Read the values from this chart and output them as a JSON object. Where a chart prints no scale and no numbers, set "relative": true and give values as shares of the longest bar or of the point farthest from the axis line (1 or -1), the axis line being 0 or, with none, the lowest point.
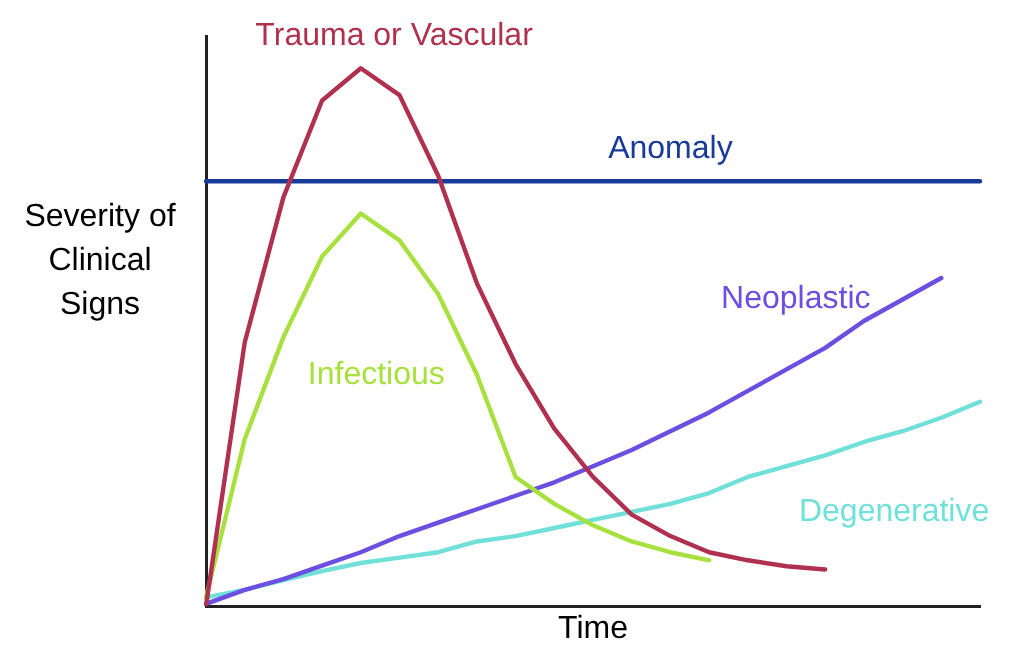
{
  "chart_data": {
    "type": "line",
    "relative": true,
    "xlabel": "Time",
    "ylabel": "Severity of Clinical Signs",
    "grid": false,
    "legend": false,
    "marker": "none",
    "line_style": "solid",
    "categories": [
      null,
      null,
      null,
      null,
      null,
      null,
      null,
      null,
      null,
      null,
      null,
      null,
      null,
      null,
      null,
      null,
      null,
      null,
      null,
      null,
      null
    ],
    "series": [
      {
        "name": "Trauma or Vascular",
        "color": "#b0304f",
        "values": [
          0,
          0.49,
          0.76,
          0.94,
          1,
          0.95,
          0.8,
          0.6,
          0.45,
          0.33,
          0.24,
          0.17,
          0.13,
          0.1,
          0.085,
          0.074,
          0.068,
          null,
          null,
          null,
          null
        ]
      },
      {
        "name": "Anomaly",
        "color": "#1a3a9a",
        "values": [
          0.79,
          0.79,
          0.79,
          0.79,
          0.79,
          0.79,
          0.79,
          0.79,
          0.79,
          0.79,
          0.79,
          0.79,
          0.79,
          0.79,
          0.79,
          0.79,
          0.79,
          0.79,
          0.79,
          0.79,
          0.79
        ]
      },
      {
        "name": "Infectious",
        "color": "#a8e040",
        "values": [
          0.016,
          0.31,
          0.5,
          0.65,
          0.73,
          0.68,
          0.58,
          0.43,
          0.24,
          0.19,
          0.15,
          0.12,
          0.1,
          0.085,
          null,
          null,
          null,
          null,
          null,
          null,
          null
        ]
      },
      {
        "name": "Neoplastic",
        "color": "#6a4fe0",
        "values": [
          0.004,
          0.03,
          0.05,
          0.075,
          0.1,
          0.13,
          0.155,
          0.18,
          0.205,
          0.23,
          0.26,
          0.29,
          0.325,
          0.36,
          0.4,
          0.44,
          0.48,
          0.53,
          0.57,
          0.61,
          null
        ]
      },
      {
        "name": "Degenerative",
        "color": "#70e0d8",
        "values": [
          0.016,
          0.03,
          0.048,
          0.065,
          0.08,
          0.09,
          0.1,
          0.12,
          0.13,
          0.145,
          0.16,
          0.175,
          0.19,
          0.21,
          0.24,
          0.26,
          0.28,
          0.305,
          0.325,
          0.35,
          0.38
        ]
      }
    ]
  }
}
